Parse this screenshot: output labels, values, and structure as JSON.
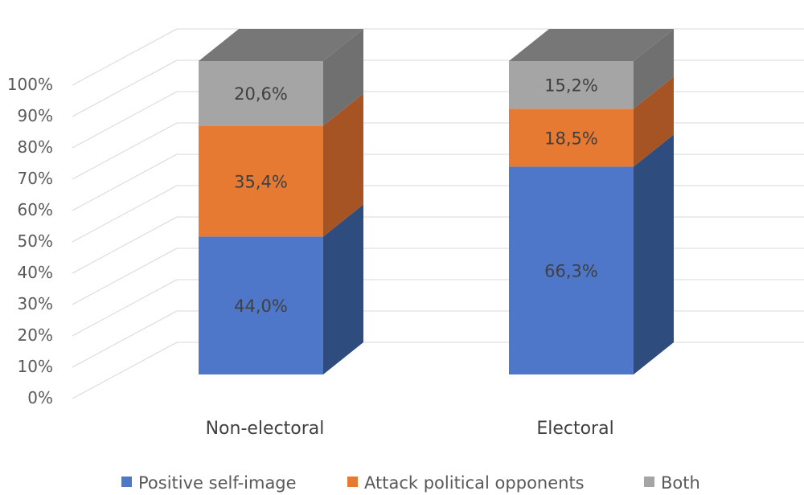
{
  "chart_data": {
    "type": "bar",
    "stacked": true,
    "percent_stacked": true,
    "style": "3d-column",
    "categories": [
      "Non-electoral",
      "Electoral"
    ],
    "series": [
      {
        "name": "Positive self-image",
        "values": [
          44.0,
          66.3
        ],
        "labels": [
          "44,0%",
          "66,3%"
        ],
        "color": "#4f77c9",
        "side_color": "#2f4c7e"
      },
      {
        "name": "Attack political opponents",
        "values": [
          35.4,
          18.5
        ],
        "labels": [
          "35,4%",
          "18,5%"
        ],
        "color": "#e67a33",
        "side_color": "#a65424"
      },
      {
        "name": "Both",
        "values": [
          20.6,
          15.2
        ],
        "labels": [
          "20,6%",
          "15,2%"
        ],
        "color": "#a5a5a5",
        "side_color": "#707070"
      }
    ],
    "y_ticks": [
      "0%",
      "10%",
      "20%",
      "30%",
      "40%",
      "50%",
      "60%",
      "70%",
      "80%",
      "90%",
      "100%"
    ],
    "ylim": [
      0,
      100
    ],
    "grid": true,
    "legend_position": "bottom",
    "top_color": "#777777"
  }
}
